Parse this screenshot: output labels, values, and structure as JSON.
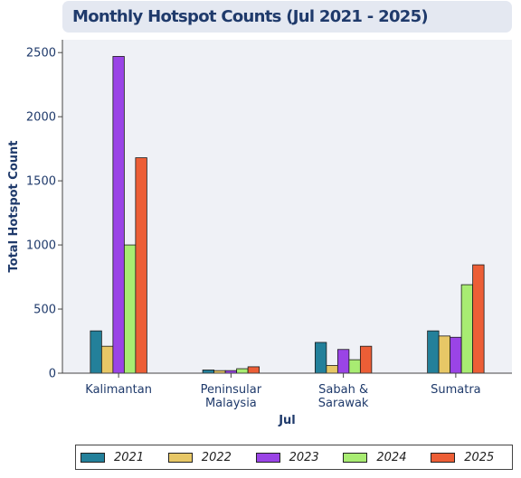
{
  "header": {
    "title": "Monthly Hotspot Counts (Jul 2021 - 2025)"
  },
  "chart_data": {
    "type": "bar",
    "title": "Monthly Hotspot Counts (Jul 2021 - 2025)",
    "xlabel": "Jul",
    "ylabel": "Total Hotspot Count",
    "categories": [
      [
        "Kalimantan"
      ],
      [
        "Peninsular",
        "Malaysia"
      ],
      [
        "Sabah &",
        "Sarawak"
      ],
      [
        "Sumatra"
      ]
    ],
    "yticks": [
      0,
      500,
      1000,
      1500,
      2000,
      2500
    ],
    "ylim": [
      0,
      2600
    ],
    "grid": false,
    "legend_position": "bottom",
    "series": [
      {
        "name": "2021",
        "color": "#23809a",
        "values": [
          330,
          25,
          240,
          330
        ]
      },
      {
        "name": "2022",
        "color": "#e7c766",
        "values": [
          210,
          20,
          60,
          290
        ]
      },
      {
        "name": "2023",
        "color": "#9a44e6",
        "values": [
          2470,
          20,
          185,
          280
        ]
      },
      {
        "name": "2024",
        "color": "#a8ec72",
        "values": [
          1000,
          35,
          105,
          690
        ]
      },
      {
        "name": "2025",
        "color": "#ec5e36",
        "values": [
          1680,
          50,
          210,
          845
        ]
      }
    ]
  }
}
